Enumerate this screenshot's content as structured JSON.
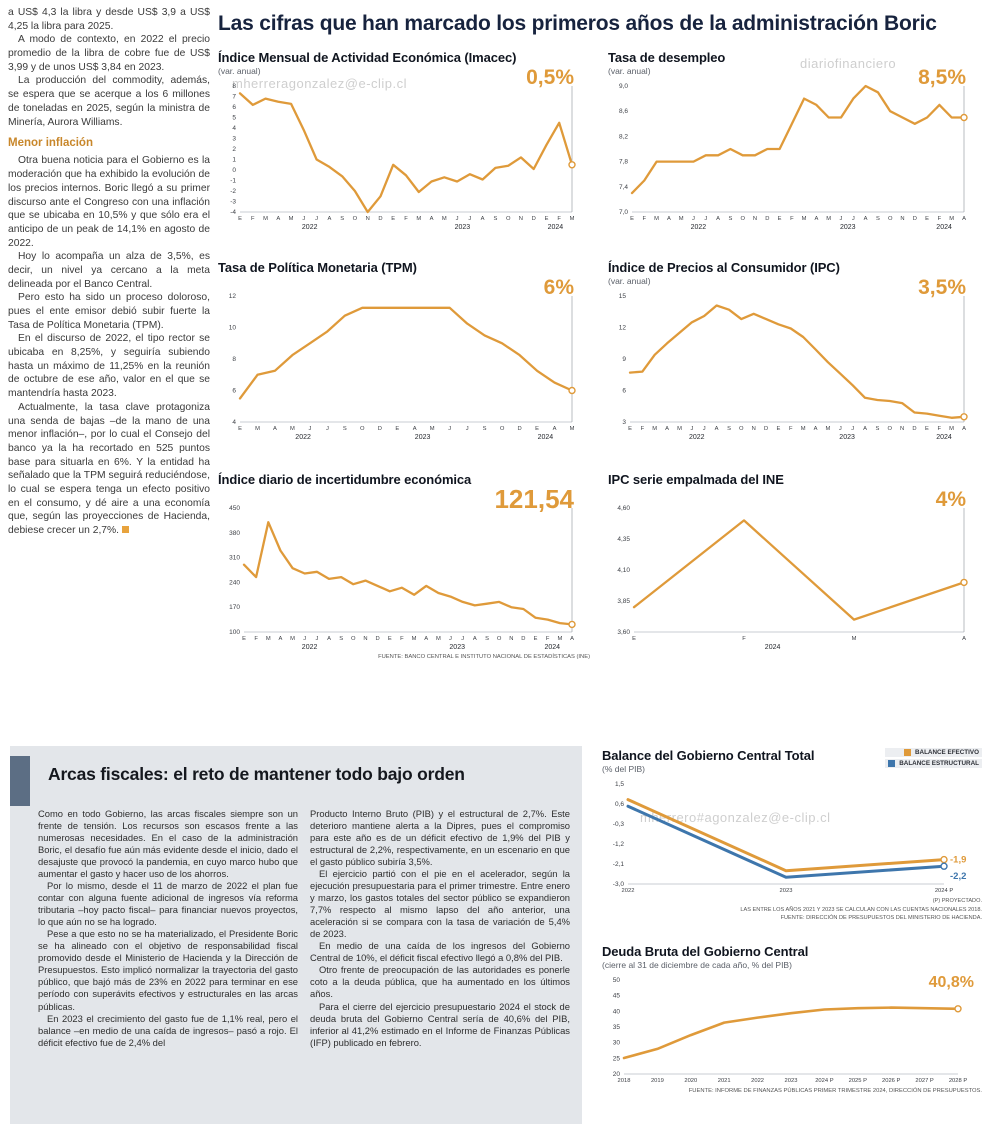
{
  "main_title": "Las cifras que han marcado los primeros años de la administración Boric",
  "left_column": {
    "p1": "a US$ 4,3 la libra y desde US$ 3,9 a US$ 4,25 la libra para 2025.",
    "p2": "A modo de contexto, en 2022 el precio promedio de la libra de cobre fue de US$ 3,99 y de unos US$ 3,84 en 2023.",
    "p3": "La producción del commodity, además, se espera que se acerque a los 6 millones de toneladas en 2025, según la ministra de Minería, Aurora Williams.",
    "heading": "Menor inflación",
    "p4": "Otra buena noticia para el Gobierno es la moderación que ha exhibido la evolución de los precios internos. Boric llegó a su primer discurso ante el Congreso con una inflación que se ubicaba en 10,5% y que sólo era el anticipo de un peak de 14,1% en agosto de 2022.",
    "p5": "Hoy lo acompaña un alza de 3,5%, es decir, un nivel ya cercano a la meta delineada por el Banco Central.",
    "p6": "Pero esto ha sido un proceso doloroso, pues el ente emisor debió subir fuerte la Tasa de Política Monetaria (TPM).",
    "p7": "En el discurso de 2022, el tipo rector se ubicaba en 8,25%, y seguiría subiendo hasta un máximo de 11,25% en la reunión de octubre de ese año, valor en el que se mantendría hasta 2023.",
    "p8": "Actualmente, la tasa clave protagoniza una senda de bajas –de la mano de una menor inflación–, por lo cual el Consejo del banco ya la ha recortado en 525 puntos base para situarla en 6%. Y la entidad ha señalado que la TPM seguirá reduciéndose, lo cual se espera tenga un efecto positivo en el consumo, y dé aire a una economía que, según las proyecciones de Hacienda, debiese crecer un 2,7%."
  },
  "watermarks": {
    "wm1": "mherreragonzalez@e-clip.cl",
    "wm2": "diariofinanciero",
    "wm3": "mherrero#agonzalez@e-clip.cl"
  },
  "arcas": {
    "title": "Arcas fiscales: el reto de mantener todo bajo orden",
    "col1": {
      "p1": "Como en todo Gobierno, las arcas fiscales siempre son un frente de tensión. Los recursos son escasos frente a las numerosas necesidades. En el caso de la administración Boric, el desafío fue aún más evidente desde el inicio, dado el desajuste que provocó la pandemia, en cuyo marco hubo que aumentar el gasto y hacer uso de los ahorros.",
      "p2": "Por lo mismo, desde el 11 de marzo de 2022 el plan fue contar con alguna fuente adicional de ingresos vía reforma tributaria –hoy pacto fiscal– para financiar nuevos proyectos, lo que aún no se ha logrado.",
      "p3": "Pese a que esto no se ha materializado, el Presidente Boric se ha alineado con el objetivo de responsabilidad fiscal promovido desde el Ministerio de Hacienda y la Dirección de Presupuestos. Esto implicó normalizar la trayectoria del gasto público, que bajó más de 23% en 2022 para terminar en ese período con superávits efectivos y estructurales en las arcas públicas.",
      "p4": "En 2023 el crecimiento del gasto fue de 1,1% real, pero el balance –en medio de una caída de ingresos– pasó a rojo. El déficit efectivo fue de 2,4% del"
    },
    "col2": {
      "p1": "Producto Interno Bruto (PIB) y el estructural de 2,7%. Este deterioro mantiene alerta a la Dipres, pues el compromiso para este año es de un déficit efectivo de 1,9% del PIB y estructural de 2,2%, respectivamente, en un escenario en que el gasto público subiría 3,5%.",
      "p2": "El ejercicio partió con el pie en el acelerador, según la ejecución presupuestaria para el primer trimestre. Entre enero y marzo, los gastos totales del sector público se expandieron 7,7% respecto al mismo lapso del año anterior, una aceleración si se compara con la tasa de variación de 5,4% de 2023.",
      "p3": "En medio de una caída de los ingresos del Gobierno Central de 10%, el déficit fiscal efectivo llegó a 0,8% del PIB.",
      "p4": "Otro frente de preocupación de las autoridades es ponerle coto a la deuda pública, que ha aumentado en los últimos años.",
      "p5": "Para el cierre del ejercicio presupuestario 2024 el stock de deuda bruta del Gobierno Central sería de 40,6% del PIB, inferior al 41,2% estimado en el Informe de Finanzas Públicas (IFP) publicado en febrero."
    }
  },
  "colors": {
    "accent_orange": "#df9a3a",
    "accent_blue": "#3e76ac"
  },
  "chart_data": [
    {
      "id": "imacec",
      "type": "line",
      "title": "Índice Mensual de Actividad Económica (Imacec)",
      "subtitle": "(var. anual)",
      "value_label": "0,5%",
      "yticks": [
        "8",
        "7",
        "6",
        "5",
        "4",
        "3",
        "2",
        "1",
        "0",
        "-1",
        "-2",
        "-3",
        "-4"
      ],
      "x_labels": [
        "E",
        "F",
        "M",
        "A",
        "M",
        "J",
        "J",
        "A",
        "S",
        "O",
        "N",
        "D",
        "E",
        "F",
        "M",
        "A",
        "M",
        "J",
        "J",
        "A",
        "S",
        "O",
        "N",
        "D",
        "E",
        "F",
        "M"
      ],
      "year_ticks": [
        {
          "label": "2022",
          "pos": 0.21
        },
        {
          "label": "2023",
          "pos": 0.67
        },
        {
          "label": "2024",
          "pos": 0.95
        }
      ],
      "end_line": true,
      "series": [
        {
          "name": "Imacec",
          "color": "#df9a3a",
          "values": [
            7.3,
            6.2,
            6.8,
            6.5,
            6.3,
            3.8,
            1.0,
            0.3,
            -0.6,
            -2.0,
            -4.0,
            -2.5,
            0.5,
            -0.5,
            -2.1,
            -1.1,
            -0.7,
            -1.1,
            -0.4,
            -0.9,
            0.2,
            0.4,
            1.2,
            0.1,
            2.4,
            4.5,
            0.5
          ]
        }
      ]
    },
    {
      "id": "desempleo",
      "type": "line",
      "title": "Tasa de desempleo",
      "subtitle": "(var. anual)",
      "value_label": "8,5%",
      "yticks": [
        "9,0",
        "8,6",
        "8,2",
        "7,8",
        "7,4",
        "7,0"
      ],
      "x_labels": [
        "E",
        "F",
        "M",
        "A",
        "M",
        "J",
        "J",
        "A",
        "S",
        "O",
        "N",
        "D",
        "E",
        "F",
        "M",
        "A",
        "M",
        "J",
        "J",
        "A",
        "S",
        "O",
        "N",
        "D",
        "E",
        "F",
        "M",
        "A"
      ],
      "year_ticks": [
        {
          "label": "2022",
          "pos": 0.2
        },
        {
          "label": "2023",
          "pos": 0.65
        },
        {
          "label": "2024",
          "pos": 0.94
        }
      ],
      "end_line": true,
      "series": [
        {
          "name": "Desempleo",
          "color": "#df9a3a",
          "values": [
            7.3,
            7.5,
            7.8,
            7.8,
            7.8,
            7.8,
            7.9,
            7.9,
            8.0,
            7.9,
            7.9,
            8.0,
            8.0,
            8.4,
            8.8,
            8.7,
            8.5,
            8.5,
            8.8,
            9.0,
            8.9,
            8.6,
            8.5,
            8.4,
            8.5,
            8.7,
            8.5,
            8.5
          ]
        }
      ]
    },
    {
      "id": "tpm",
      "type": "line",
      "title": "Tasa de Política Monetaria (TPM)",
      "subtitle": "",
      "value_label": "6%",
      "yticks": [
        "12",
        "10",
        "8",
        "6",
        "4"
      ],
      "x_labels": [
        "E",
        "M",
        "A",
        "M",
        "J",
        "J",
        "S",
        "O",
        "D",
        "E",
        "A",
        "M",
        "J",
        "J",
        "S",
        "O",
        "D",
        "E",
        "A",
        "M"
      ],
      "year_ticks": [
        {
          "label": "2022",
          "pos": 0.19
        },
        {
          "label": "2023",
          "pos": 0.55
        },
        {
          "label": "2024",
          "pos": 0.92
        }
      ],
      "end_line": true,
      "series": [
        {
          "name": "TPM",
          "color": "#df9a3a",
          "values": [
            5.5,
            7.0,
            7.25,
            8.25,
            9.0,
            9.75,
            10.75,
            11.25,
            11.25,
            11.25,
            11.25,
            11.25,
            11.25,
            10.25,
            9.5,
            9.0,
            8.25,
            7.25,
            6.5,
            6.0
          ]
        }
      ]
    },
    {
      "id": "ipc",
      "type": "line",
      "title": "Índice de Precios al Consumidor (IPC)",
      "subtitle": "(var. anual)",
      "value_label": "3,5%",
      "yticks": [
        "15",
        "12",
        "9",
        "6",
        "3"
      ],
      "x_labels": [
        "E",
        "F",
        "M",
        "A",
        "M",
        "J",
        "J",
        "A",
        "S",
        "O",
        "N",
        "D",
        "E",
        "F",
        "M",
        "A",
        "M",
        "J",
        "J",
        "A",
        "S",
        "O",
        "N",
        "D",
        "E",
        "F",
        "M",
        "A"
      ],
      "year_ticks": [
        {
          "label": "2022",
          "pos": 0.2
        },
        {
          "label": "2023",
          "pos": 0.65
        },
        {
          "label": "2024",
          "pos": 0.94
        }
      ],
      "end_line": true,
      "series": [
        {
          "name": "IPC",
          "color": "#df9a3a",
          "values": [
            7.7,
            7.8,
            9.4,
            10.5,
            11.5,
            12.5,
            13.1,
            14.1,
            13.7,
            12.8,
            13.3,
            12.8,
            12.3,
            11.9,
            11.1,
            9.9,
            8.7,
            7.6,
            6.5,
            5.3,
            5.1,
            5.0,
            4.8,
            3.9,
            3.8,
            3.6,
            3.4,
            3.5
          ]
        }
      ]
    },
    {
      "id": "incertidumbre",
      "type": "line",
      "title": "Índice diario de incertidumbre económica",
      "subtitle": "",
      "value_label": "121,54",
      "yticks": [
        "450",
        "380",
        "310",
        "240",
        "170",
        "100"
      ],
      "x_labels": [
        "E",
        "F",
        "M",
        "A",
        "M",
        "J",
        "J",
        "A",
        "S",
        "O",
        "N",
        "D",
        "E",
        "F",
        "M",
        "A",
        "M",
        "J",
        "J",
        "A",
        "S",
        "O",
        "N",
        "D",
        "E",
        "F",
        "M",
        "A"
      ],
      "year_ticks": [
        {
          "label": "2022",
          "pos": 0.2
        },
        {
          "label": "2023",
          "pos": 0.65
        },
        {
          "label": "2024",
          "pos": 0.94
        }
      ],
      "end_line": true,
      "source": "FUENTE: BANCO CENTRAL E INSTITUTO NACIONAL DE ESTADÍSTICAS (INE)",
      "series": [
        {
          "name": "Incertidumbre",
          "color": "#df9a3a",
          "values": [
            290,
            255,
            410,
            330,
            280,
            265,
            270,
            250,
            255,
            235,
            245,
            230,
            215,
            225,
            205,
            230,
            210,
            200,
            185,
            175,
            180,
            185,
            170,
            165,
            140,
            135,
            125,
            121.54
          ]
        }
      ]
    },
    {
      "id": "ipc_empalmada",
      "type": "line",
      "title": "IPC serie empalmada del INE",
      "subtitle": "",
      "value_label": "4%",
      "yticks": [
        "4,60",
        "4,35",
        "4,10",
        "3,85",
        "3,60"
      ],
      "x_labels": [
        "E",
        "F",
        "M",
        "A"
      ],
      "year_ticks": [
        {
          "label": "2024",
          "pos": 0.42
        }
      ],
      "end_line": true,
      "series": [
        {
          "name": "IPC empalmada",
          "color": "#df9a3a",
          "values": [
            3.8,
            4.5,
            3.7,
            4.0
          ]
        }
      ]
    },
    {
      "id": "balance",
      "type": "line",
      "title": "Balance del Gobierno Central Total",
      "subtitle": "(% del PIB)",
      "legend": [
        {
          "label": "BALANCE EFECTIVO",
          "color": "#df9a3a"
        },
        {
          "label": "BALANCE ESTRUCTURAL",
          "color": "#3e76ac"
        }
      ],
      "yticks": [
        "1,5",
        "0,6",
        "-0,3",
        "-1,2",
        "-2,1",
        "-3,0"
      ],
      "x_labels": [
        "2022",
        "2023",
        "2024 P"
      ],
      "end_line": false,
      "notes": [
        "(P) PROYECTADO.",
        "LAS ENTRE LOS AÑOS 2021 Y 2023 SE CALCULAN  CON LAS CUENTAS NACIONALES 2018.",
        "FUENTE: DIRECCIÓN DE PRESUPUESTOS DEL MINISTERIO DE HACIENDA."
      ],
      "series": [
        {
          "name": "Balance efectivo",
          "color": "#df9a3a",
          "width": 3,
          "end_label": "-1,9",
          "end_label_dy": 0,
          "values": [
            0.8,
            -2.4,
            -1.9
          ]
        },
        {
          "name": "Balance estructural",
          "color": "#3e76ac",
          "width": 3,
          "end_label": "-2,2",
          "end_label_dy": 10,
          "values": [
            0.5,
            -2.7,
            -2.2
          ]
        }
      ]
    },
    {
      "id": "deuda",
      "type": "line",
      "title": "Deuda Bruta del Gobierno Central",
      "subtitle": "(cierre al 31 de diciembre de cada año, % del PIB)",
      "value_label": "40,8%",
      "yticks": [
        "50",
        "45",
        "40",
        "35",
        "30",
        "25",
        "20"
      ],
      "x_labels": [
        "2018",
        "2019",
        "2020",
        "2021",
        "2022",
        "2023",
        "2024 P",
        "2025 P",
        "2026 P",
        "2027 P",
        "2028 P"
      ],
      "end_line": false,
      "source": "FUENTE: INFORME DE FINANZAS PÚBLICAS PRIMER TRIMESTRE 2024, DIRECCIÓN DE PRESUPUESTOS.",
      "series": [
        {
          "name": "Deuda bruta",
          "color": "#df9a3a",
          "width": 2.6,
          "values": [
            25.1,
            28.0,
            32.4,
            36.4,
            38.0,
            39.4,
            40.6,
            41.0,
            41.2,
            41.0,
            40.8
          ]
        }
      ]
    }
  ]
}
